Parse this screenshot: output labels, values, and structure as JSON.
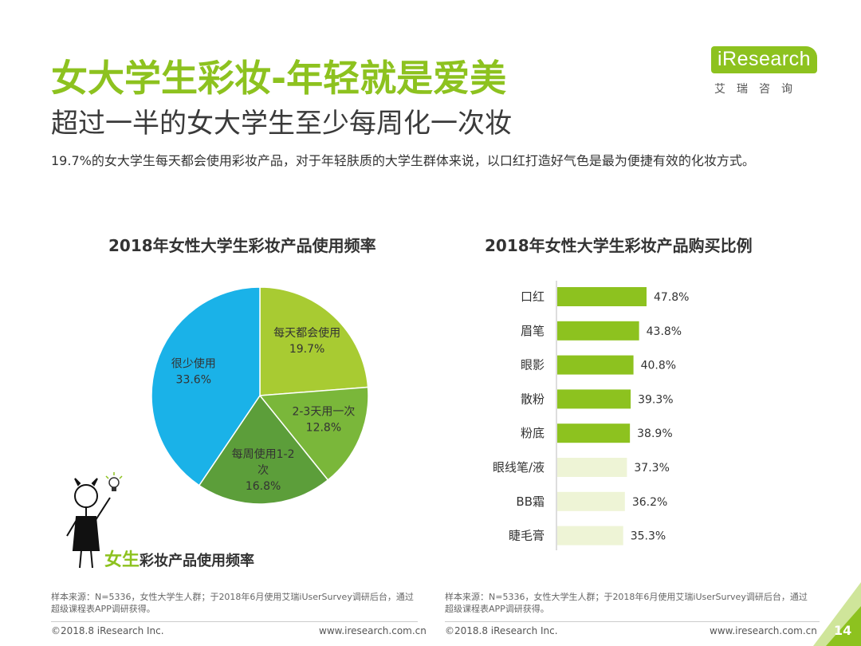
{
  "title": "女大学生彩妆-年轻就是爱美",
  "subtitle": "超过一半的女大学生至少每周化一次妆",
  "description": "19.7%的女大学生每天都会使用彩妆产品，对于年轻肤质的大学生群体来说，以口红打造好气色是最为便捷有效的化妆方式。",
  "logo": {
    "wordmark": "iResearch",
    "chinese": "艾瑞咨询"
  },
  "colors": {
    "brand_green": "#8dc21f",
    "pale_green": "#eef4d6",
    "pie_blue": "#1ab2e8",
    "pie_green1": "#a8cb32",
    "pie_green2": "#7ab73a",
    "pie_green3": "#5c9e3a"
  },
  "chart_data": [
    {
      "type": "pie",
      "title": "2018年女性大学生彩妆产品使用频率",
      "slices": [
        {
          "label": "每天都会使用",
          "value": 19.7,
          "value_label": "19.7%",
          "color": "#a8cb32"
        },
        {
          "label": "2-3天用一次",
          "value": 12.8,
          "value_label": "12.8%",
          "color": "#7ab73a"
        },
        {
          "label": "每周使用1-2次",
          "value": 16.8,
          "value_label": "16.8%",
          "color": "#5c9e3a"
        },
        {
          "label": "很少使用",
          "value": 33.6,
          "value_label": "33.6%",
          "color": "#1ab2e8"
        }
      ]
    },
    {
      "type": "bar",
      "orientation": "horizontal",
      "title": "2018年女性大学生彩妆产品购买比例",
      "categories": [
        "口红",
        "眉笔",
        "眼影",
        "散粉",
        "粉底",
        "眼线笔/液",
        "BB霜",
        "睫毛膏"
      ],
      "values": [
        47.8,
        43.8,
        40.8,
        39.3,
        38.9,
        37.3,
        36.2,
        35.3
      ],
      "value_labels": [
        "47.8%",
        "43.8%",
        "40.8%",
        "39.3%",
        "38.9%",
        "37.3%",
        "36.2%",
        "35.3%"
      ],
      "highlighted_count": 5
    }
  ],
  "figure_caption": {
    "highlight": "女生",
    "rest": "彩妆产品使用频率"
  },
  "source_note": "样本来源：N=5336，女性大学生人群；于2018年6月使用艾瑞iUserSurvey调研后台，通过超级课程表APP调研获得。",
  "footer": {
    "copyright": "©2018.8 iResearch Inc.",
    "url": "www.iresearch.com.cn"
  },
  "page_number": "14"
}
